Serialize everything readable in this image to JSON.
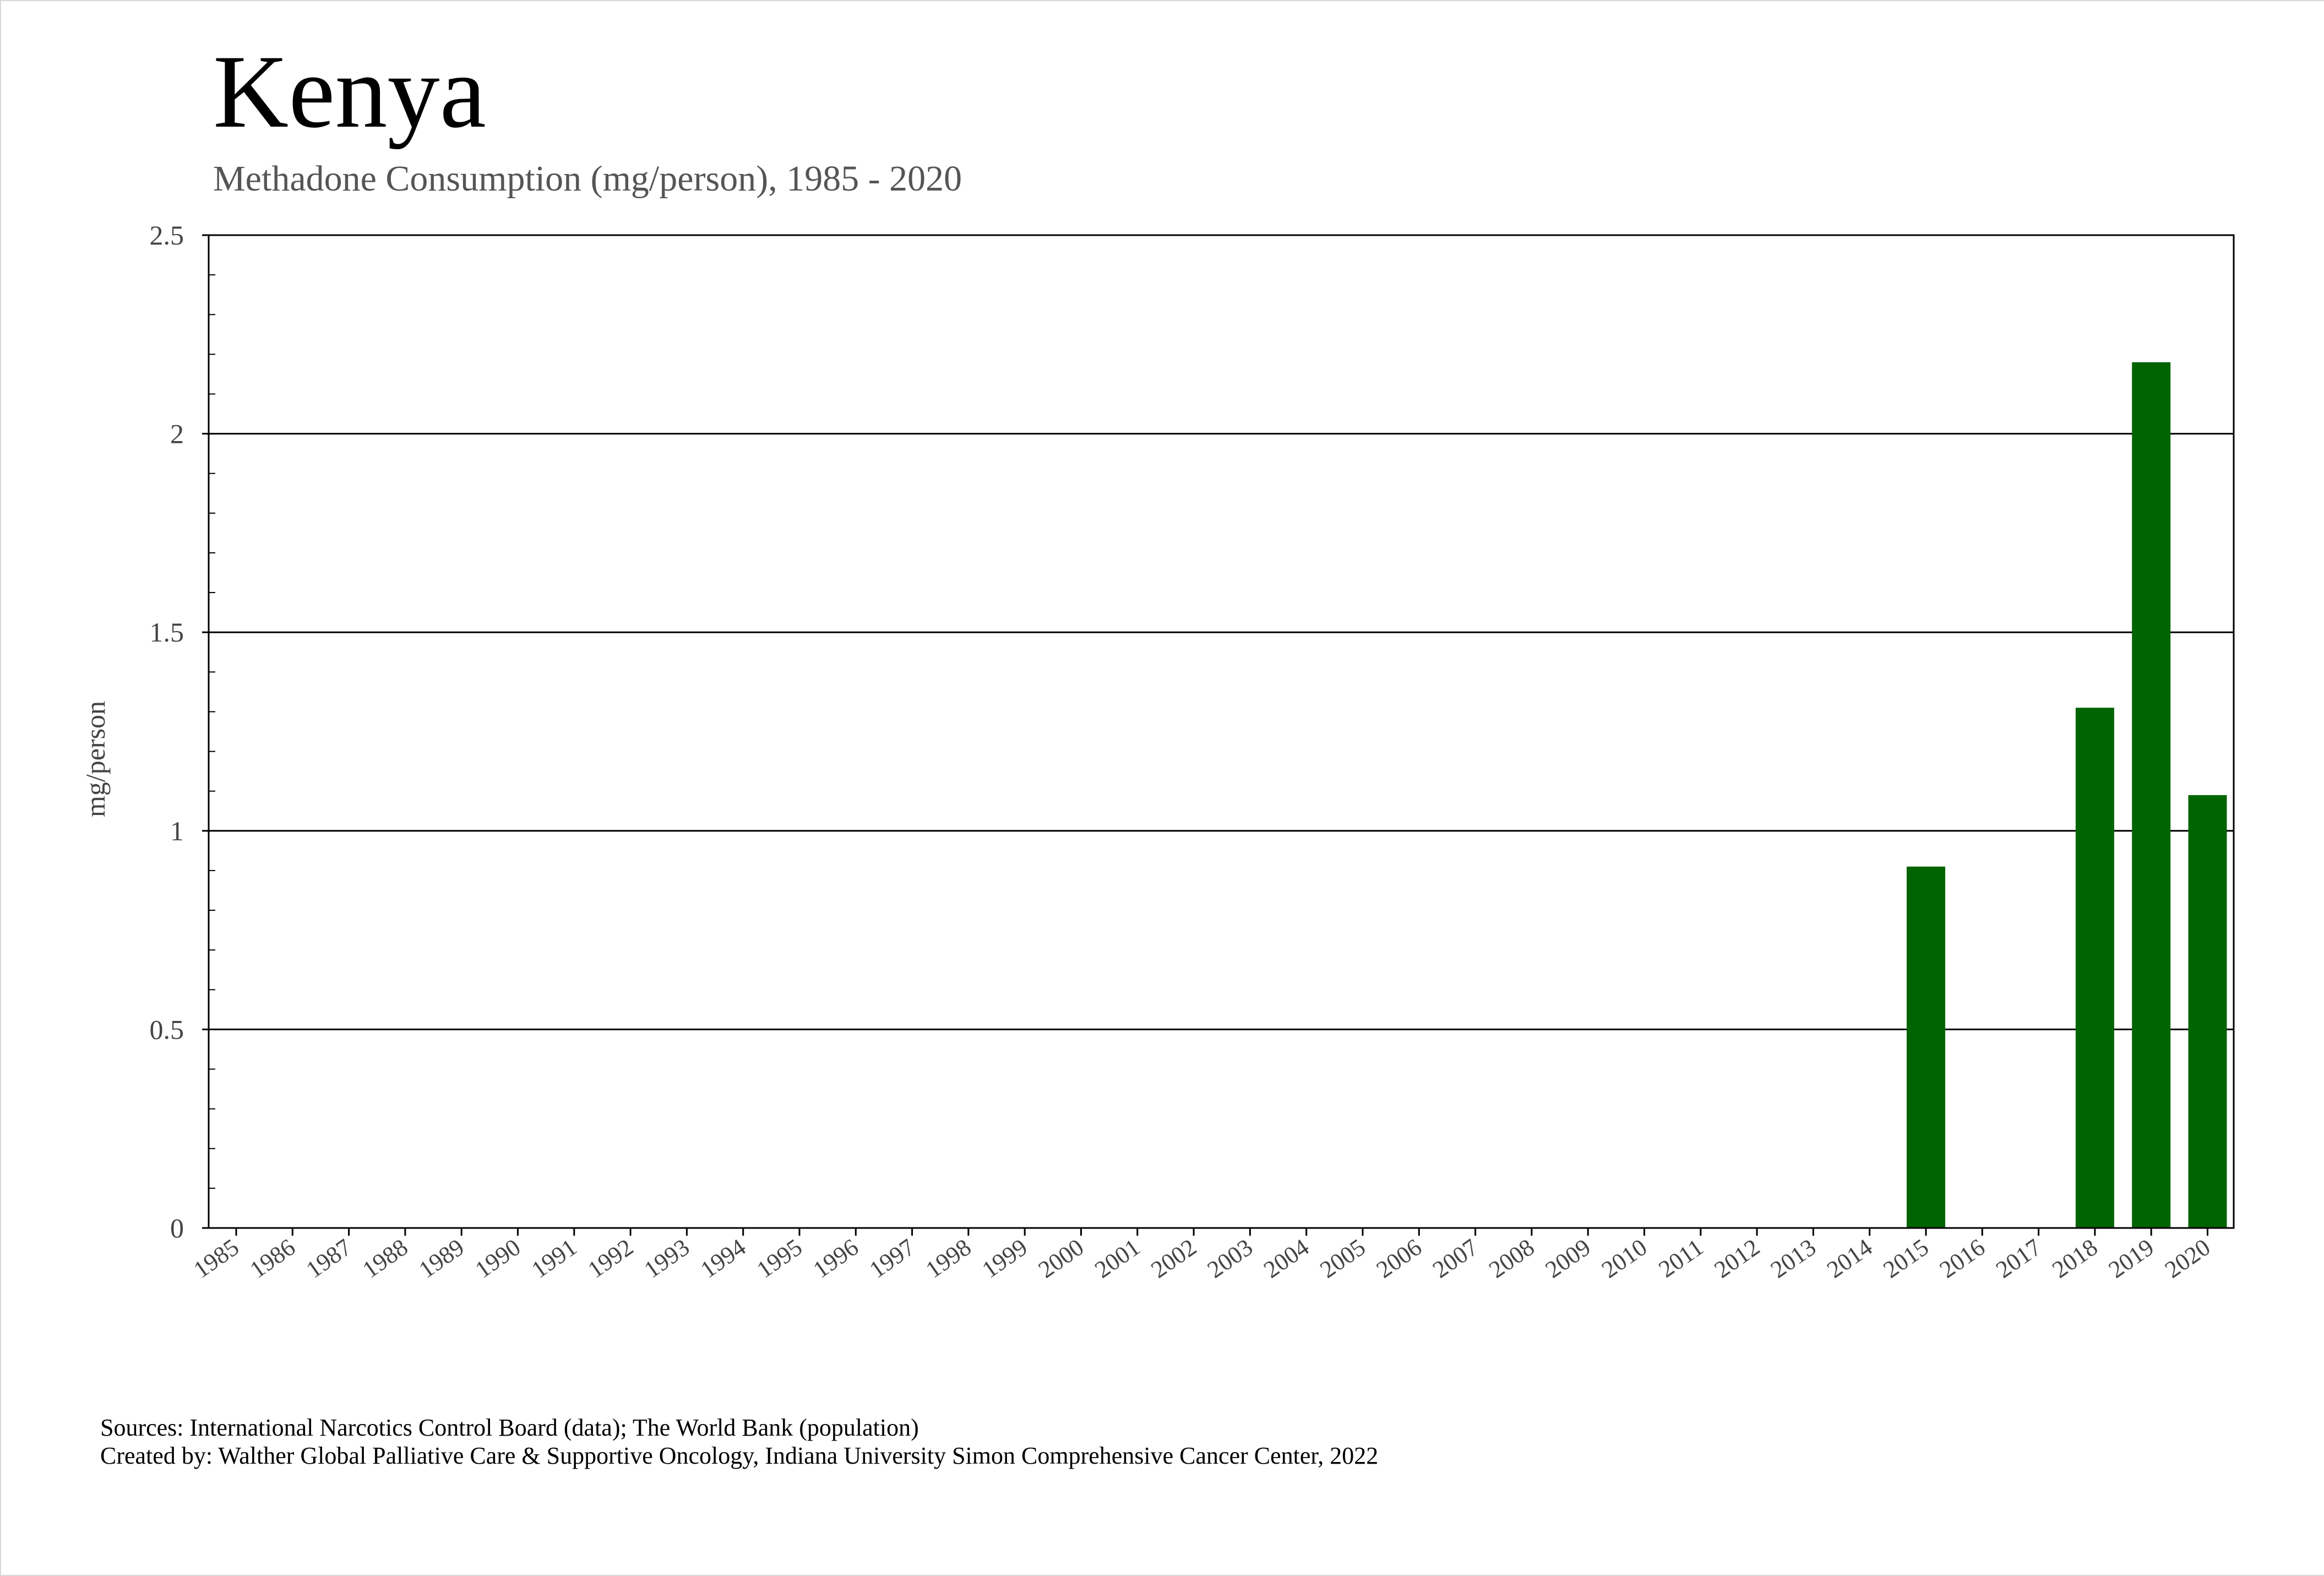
{
  "header": {
    "title": "Kenya",
    "subtitle": "Methadone Consumption (mg/person), 1985 - 2020"
  },
  "footer": {
    "sources": "Sources: International Narcotics Control Board (data); The World Bank (population)",
    "credit": "Created by: Walther Global Palliative Care & Supportive Oncology, Indiana University Simon Comprehensive Cancer Center, 2022"
  },
  "chart_data": {
    "type": "bar",
    "title": "Kenya",
    "subtitle": "Methadone Consumption (mg/person), 1985 - 2020",
    "xlabel": "",
    "ylabel": "mg/person",
    "ylim": [
      0,
      2.5
    ],
    "yticks": [
      0,
      0.5,
      1,
      1.5,
      2,
      2.5
    ],
    "ytick_labels": [
      "0",
      "0.5",
      "1",
      "1.5",
      "2",
      "2.5"
    ],
    "grid": true,
    "bar_color": "#006400",
    "categories": [
      "1985",
      "1986",
      "1987",
      "1988",
      "1989",
      "1990",
      "1991",
      "1992",
      "1993",
      "1994",
      "1995",
      "1996",
      "1997",
      "1998",
      "1999",
      "2000",
      "2001",
      "2002",
      "2003",
      "2004",
      "2005",
      "2006",
      "2007",
      "2008",
      "2009",
      "2010",
      "2011",
      "2012",
      "2013",
      "2014",
      "2015",
      "2016",
      "2017",
      "2018",
      "2019",
      "2020"
    ],
    "values": [
      0,
      0,
      0,
      0,
      0,
      0,
      0,
      0,
      0,
      0,
      0,
      0,
      0,
      0,
      0,
      0,
      0,
      0,
      0,
      0,
      0,
      0,
      0,
      0,
      0,
      0,
      0,
      0,
      0,
      0,
      0.91,
      0,
      0,
      1.31,
      2.18,
      1.09
    ]
  }
}
